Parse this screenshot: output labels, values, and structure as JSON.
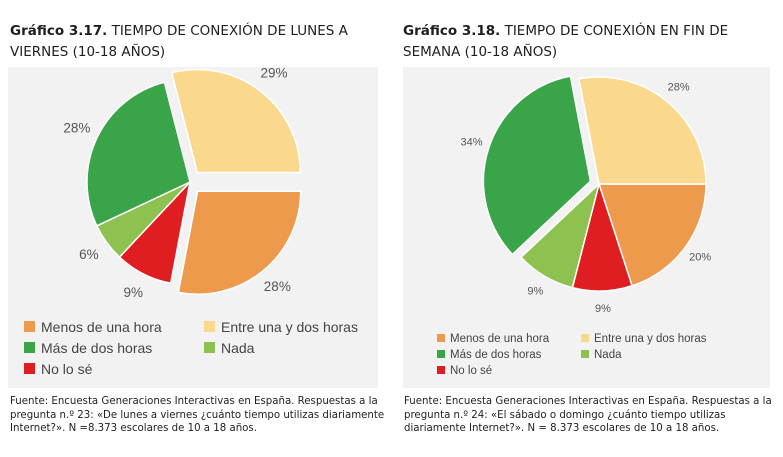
{
  "colors": {
    "menos": "#ee9a4c",
    "entre": "#fad88e",
    "mas": "#3aa548",
    "nada": "#8ec250",
    "nolose": "#e01e22"
  },
  "charts": [
    {
      "title_num": "Gráfico 3.17.",
      "title_text": "TIEMPO DE CONEXIÓN DE LUNES A VIERNES (10-18 AÑOS)",
      "source": "Fuente: Encuesta Generaciones Interactivas en España. Respuestas a la pregunta n.º 23: «De lunes a viernes ¿cuánto tiempo utilizas diariamente Internet?». N =8.373 escolares de 10 a 18 años.",
      "legend": [
        "Menos de una hora",
        "Entre una y dos horas",
        "Más de dos horas",
        "Nada",
        "No lo sé"
      ]
    },
    {
      "title_num": "Gráfico 3.18.",
      "title_text": "TIEMPO DE CONEXIÓN EN FIN DE SEMANA (10-18 AÑOS)",
      "source": "Fuente: Encuesta Generaciones Interactivas en España. Respuestas a la pregunta n.º 24: «El sábado o domingo ¿cuánto tiempo utilizas diariamente Internet?». N = 8.373 escolares de 10 a 18 años.",
      "legend": [
        "Menos de una hora",
        "Entre una y dos horas",
        "Más de dos horas",
        "Nada",
        "No lo sé"
      ]
    }
  ],
  "chart_data": [
    {
      "type": "pie",
      "title": "TIEMPO DE CONEXIÓN DE LUNES A VIERNES (10-18 AÑOS)",
      "categories": [
        "Menos de una hora",
        "No lo sé",
        "Nada",
        "Más de dos horas",
        "Entre una y dos horas"
      ],
      "values": [
        28,
        9,
        6,
        28,
        29
      ],
      "labels": [
        "28%",
        "9%",
        "6%",
        "28%",
        "29%"
      ],
      "color_keys": [
        "menos",
        "nolose",
        "nada",
        "mas",
        "entre"
      ],
      "exploded": [
        "Menos de una hora",
        "Entre una y dos horas"
      ],
      "legend_placement": "bottom"
    },
    {
      "type": "pie",
      "title": "TIEMPO DE CONEXIÓN EN FIN DE SEMANA (10-18 AÑOS)",
      "categories": [
        "Menos de una hora",
        "No lo sé",
        "Nada",
        "Más de dos horas",
        "Entre una y dos horas"
      ],
      "values": [
        20,
        9,
        9,
        34,
        28
      ],
      "labels": [
        "20%",
        "9%",
        "9%",
        "34%",
        "28%"
      ],
      "color_keys": [
        "menos",
        "nolose",
        "nada",
        "mas",
        "entre"
      ],
      "exploded": [
        "Más de dos horas"
      ],
      "legend_placement": "bottom"
    }
  ]
}
